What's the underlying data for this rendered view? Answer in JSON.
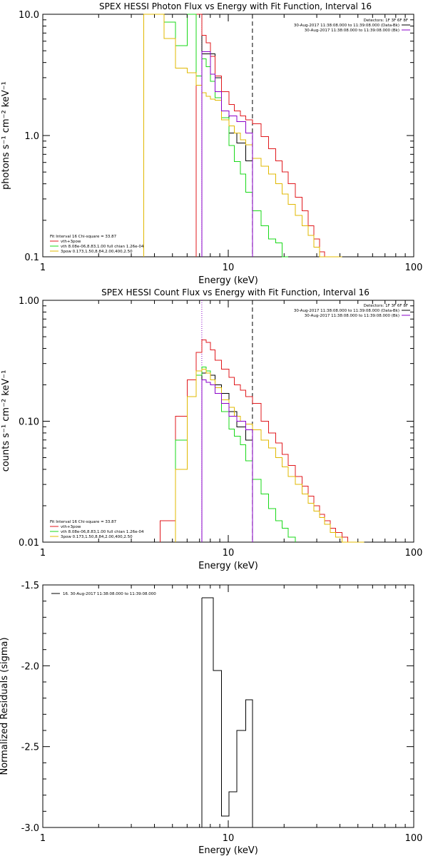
{
  "colors": {
    "data": "#000000",
    "total": "#e0181c",
    "thermal": "#18d818",
    "powerlaw": "#e0b800",
    "bkg": "#8a00c8",
    "background": "#ffffff"
  },
  "chart_data": [
    {
      "type": "line",
      "title": "SPEX HESSI Photon Flux vs Energy with Fit Function, Interval 16",
      "xlabel": "Energy (keV)",
      "ylabel": "photons s⁻¹ cm⁻² keV⁻¹",
      "xscale": "log",
      "yscale": "log",
      "xlim": [
        1,
        100
      ],
      "ylim": [
        0.1,
        10
      ],
      "xticks": [
        {
          "v": 1,
          "label": "1"
        },
        {
          "v": 10,
          "label": "10"
        },
        {
          "v": 100,
          "label": "100"
        }
      ],
      "yticks": [
        {
          "v": 0.1,
          "label": "0.1"
        },
        {
          "v": 1,
          "label": "1.0"
        },
        {
          "v": 10,
          "label": "10.0"
        }
      ],
      "vlines": [
        {
          "x": 7.2,
          "style": "dotted",
          "color": "purple"
        },
        {
          "x": 13.5,
          "style": "dashed",
          "color": "black"
        }
      ],
      "header_right": [
        "Detectors: 1F 3F 6F 8F",
        "30-Aug-2017 11:38:08.000 to 11:39:08.000 (Data-Bk)",
        "30-Aug-2017 11:38:08.000 to 11:39:08.000 (Bk)"
      ],
      "legend": {
        "position": "bottom-left",
        "lines": [
          "Fit Interval 16   Chi-square = 33.87",
          "vth+3pow",
          "vth 8.08e-06,8.83,1.00   full chian 1.26e-04",
          "3pow 0.173,1.50,8.84,2.00,400,2.50"
        ]
      },
      "series": [
        {
          "key": "data",
          "style": "solid",
          "edges": [
            6.7,
            7.2,
            8.5,
            9.2,
            10.1,
            11.1,
            12.4,
            13.5
          ],
          "values": [
            10,
            4.7,
            3.0,
            1.6,
            1.05,
            0.87,
            0.62,
            0.39
          ]
        },
        {
          "key": "total",
          "style": "solid",
          "edges": [
            6.7,
            7.2,
            7.6,
            8.0,
            8.5,
            9.2,
            10.1,
            10.8,
            11.6,
            12.4,
            13.5,
            15.0,
            16.5,
            18.0,
            19.5,
            21.0,
            23.0,
            25.0,
            27.0,
            29.0,
            31.0,
            33.0,
            35.5,
            38.0,
            41.0
          ],
          "values": [
            10,
            6.7,
            5.8,
            4.5,
            3.1,
            2.3,
            1.8,
            1.6,
            1.45,
            1.35,
            1.25,
            0.98,
            0.78,
            0.62,
            0.5,
            0.4,
            0.31,
            0.24,
            0.18,
            0.14,
            0.11,
            0.1,
            0.1,
            0.1
          ]
        },
        {
          "key": "thermal",
          "style": "solid",
          "edges": [
            3.5,
            4.5,
            5.2,
            6.0,
            6.7,
            7.2,
            7.6,
            8.0,
            8.5,
            9.2,
            10.1,
            10.8,
            11.6,
            12.4,
            13.5,
            15.0,
            16.5,
            18.0,
            19.5,
            21.0
          ],
          "values": [
            10,
            8.6,
            5.5,
            10,
            3.1,
            4.3,
            3.7,
            2.8,
            2.05,
            1.4,
            0.83,
            0.61,
            0.48,
            0.34,
            0.24,
            0.18,
            0.14,
            0.13,
            0.1
          ]
        },
        {
          "key": "powerlaw",
          "style": "solid",
          "edges": [
            3.5,
            4.5,
            5.2,
            6.0,
            6.7,
            7.2,
            7.6,
            8.0,
            8.5,
            9.2,
            10.1,
            10.8,
            11.6,
            12.4,
            13.5,
            15.0,
            16.5,
            18.0,
            19.5,
            21.0,
            23.0,
            25.0,
            27.0,
            29.0,
            31.0,
            33.0,
            35.5,
            38.0,
            41.0
          ],
          "values": [
            10,
            6.3,
            3.6,
            3.3,
            2.6,
            2.25,
            2.1,
            2.0,
            1.95,
            1.35,
            1.2,
            1.05,
            0.92,
            0.84,
            0.65,
            0.56,
            0.48,
            0.4,
            0.33,
            0.27,
            0.22,
            0.18,
            0.15,
            0.12,
            0.1,
            0.1,
            0.1,
            0.1
          ]
        },
        {
          "key": "bkg",
          "style": "solid",
          "edges": [
            7.2,
            8.0,
            8.5,
            9.2,
            10.1,
            11.1,
            12.4,
            13.5
          ],
          "values": [
            4.9,
            3.2,
            2.3,
            1.6,
            1.45,
            1.3,
            1.05
          ]
        }
      ]
    },
    {
      "type": "line",
      "title": "SPEX HESSI Count Flux vs Energy with Fit Function, Interval 16",
      "xlabel": "Energy (keV)",
      "ylabel": "counts s⁻¹ cm⁻² keV⁻¹",
      "xscale": "log",
      "yscale": "log",
      "xlim": [
        1,
        100
      ],
      "ylim": [
        0.01,
        1
      ],
      "xticks": [
        {
          "v": 1,
          "label": "1"
        },
        {
          "v": 10,
          "label": "10"
        },
        {
          "v": 100,
          "label": "100"
        }
      ],
      "yticks": [
        {
          "v": 0.01,
          "label": "0.01"
        },
        {
          "v": 0.1,
          "label": "0.10"
        },
        {
          "v": 1,
          "label": "1.00"
        }
      ],
      "vlines": [
        {
          "x": 7.2,
          "style": "dotted",
          "color": "purple"
        },
        {
          "x": 13.5,
          "style": "dashed",
          "color": "black"
        }
      ],
      "header_right": [
        "Detectors: 1F 3F 6F 8F",
        "30-Aug-2017 11:38:08.000 to 11:39:08.000 (Data-Bk)",
        "30-Aug-2017 11:38:08.000 to 11:39:08.000 (Bk)"
      ],
      "legend": {
        "position": "bottom-left",
        "lines": [
          "Fit Interval 16   Chi-square = 33.87",
          "vth+3pow",
          "vth 8.08e-06,8.83,1.00   full chian 1.26e-04",
          "3pow 0.173,1.50,8.84,2.00,400,2.50"
        ]
      },
      "series": [
        {
          "key": "data",
          "style": "solid",
          "edges": [
            7.2,
            7.6,
            8.0,
            8.5,
            9.2,
            10.1,
            11.1,
            12.4,
            13.5
          ],
          "values": [
            0.25,
            0.26,
            0.24,
            0.2,
            0.17,
            0.12,
            0.09,
            0.07,
            0.05
          ]
        },
        {
          "key": "total",
          "style": "solid",
          "edges": [
            4.3,
            5.2,
            6.0,
            6.7,
            7.2,
            7.6,
            8.0,
            8.5,
            9.2,
            10.1,
            10.8,
            11.6,
            12.4,
            13.5,
            15.0,
            16.5,
            18.0,
            19.5,
            21.0,
            23.0,
            25.0,
            27.0,
            29.0,
            31.0,
            33.0,
            35.5,
            38.0,
            41.0,
            44.0,
            47.0,
            50.5,
            54.0
          ],
          "values": [
            0.015,
            0.11,
            0.22,
            0.37,
            0.47,
            0.45,
            0.39,
            0.32,
            0.27,
            0.23,
            0.2,
            0.18,
            0.16,
            0.14,
            0.1,
            0.08,
            0.066,
            0.053,
            0.043,
            0.035,
            0.029,
            0.024,
            0.02,
            0.017,
            0.015,
            0.013,
            0.012,
            0.011,
            0.01,
            0.01,
            0.01
          ]
        },
        {
          "key": "thermal",
          "style": "solid",
          "edges": [
            5.2,
            6.0,
            6.7,
            7.2,
            7.6,
            8.0,
            8.5,
            9.2,
            10.1,
            10.8,
            11.6,
            12.4,
            13.5,
            15.0,
            16.5,
            18.0,
            19.5,
            21.0,
            23.0
          ],
          "values": [
            0.07,
            0.16,
            0.24,
            0.28,
            0.26,
            0.22,
            0.17,
            0.12,
            0.086,
            0.075,
            0.064,
            0.047,
            0.033,
            0.025,
            0.019,
            0.015,
            0.013,
            0.011
          ]
        },
        {
          "key": "powerlaw",
          "style": "solid",
          "edges": [
            5.2,
            6.0,
            6.7,
            7.2,
            7.6,
            8.0,
            8.5,
            9.2,
            10.1,
            10.8,
            11.6,
            12.4,
            13.5,
            15.0,
            16.5,
            18.0,
            19.5,
            21.0,
            23.0,
            25.0,
            27.0,
            29.0,
            31.0,
            33.0,
            35.5,
            38.0,
            41.0,
            44.0,
            47.0,
            50.5,
            54.0
          ],
          "values": [
            0.04,
            0.16,
            0.26,
            0.27,
            0.25,
            0.22,
            0.19,
            0.15,
            0.13,
            0.11,
            0.1,
            0.095,
            0.085,
            0.07,
            0.06,
            0.05,
            0.042,
            0.035,
            0.03,
            0.025,
            0.021,
            0.018,
            0.016,
            0.014,
            0.012,
            0.011,
            0.01,
            0.01,
            0.01,
            0.01
          ]
        },
        {
          "key": "bkg",
          "style": "solid",
          "edges": [
            7.2,
            7.6,
            8.0,
            8.5,
            9.2,
            10.1,
            11.1,
            12.4,
            13.5
          ],
          "values": [
            0.22,
            0.21,
            0.2,
            0.17,
            0.14,
            0.11,
            0.1,
            0.085
          ]
        }
      ]
    },
    {
      "type": "line",
      "title": "",
      "xlabel": "Energy (keV)",
      "ylabel": "Normalized Residuals (sigma)",
      "xscale": "log",
      "yscale": "linear",
      "xlim": [
        1,
        100
      ],
      "ylim": [
        -3.0,
        -1.5
      ],
      "xticks": [
        {
          "v": 1,
          "label": "1"
        },
        {
          "v": 10,
          "label": "10"
        },
        {
          "v": 100,
          "label": "100"
        }
      ],
      "yticks": [
        {
          "v": -3.0,
          "label": "-3.0"
        },
        {
          "v": -2.5,
          "label": "-2.5"
        },
        {
          "v": -2.0,
          "label": "-2.0"
        },
        {
          "v": -1.5,
          "label": "-1.5"
        }
      ],
      "legend": {
        "position": "top-left",
        "lines": [
          "16. 30-Aug-2017 11:38:08.000 to 11:39:08.000"
        ]
      },
      "series": [
        {
          "key": "data",
          "style": "solid",
          "edges": [
            7.2,
            8.3,
            9.2,
            10.1,
            11.1,
            12.4,
            13.5
          ],
          "values": [
            -1.58,
            -2.03,
            -2.93,
            -2.78,
            -2.4,
            -2.21
          ]
        }
      ]
    }
  ]
}
